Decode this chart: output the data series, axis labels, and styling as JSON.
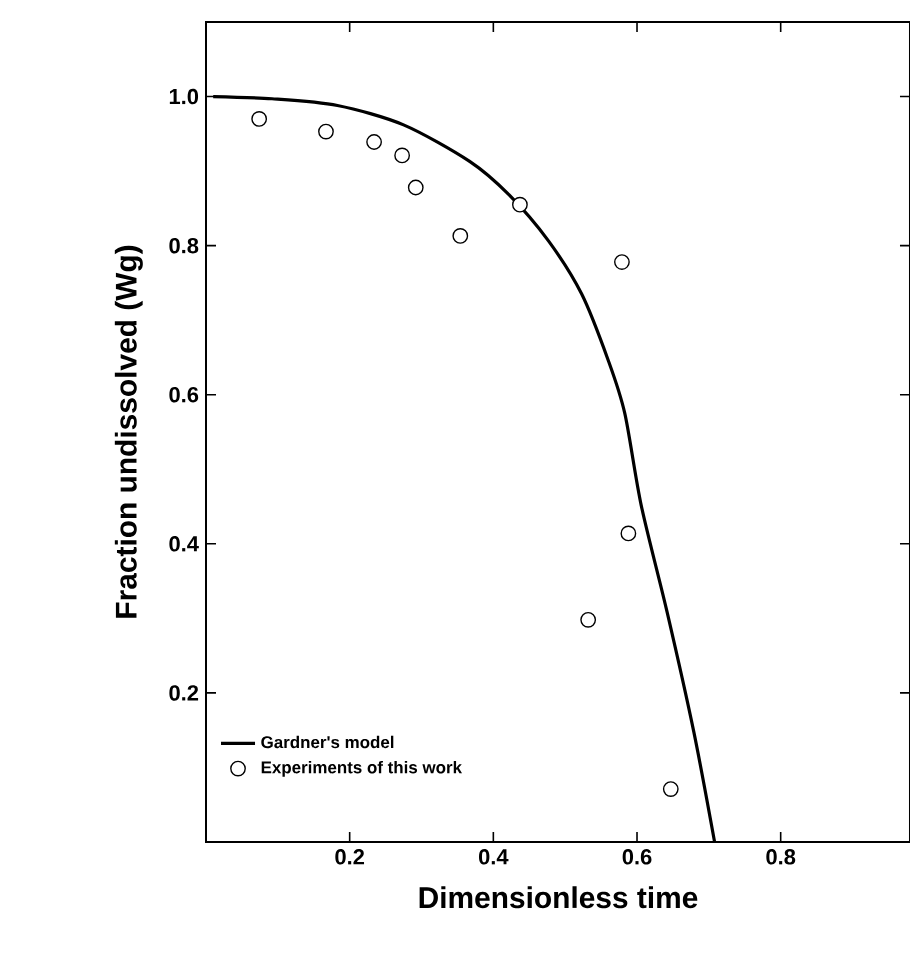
{
  "chart_data": {
    "type": "scatter",
    "xlabel": "Dimensionless time",
    "ylabel": "Fraction undissolved (Wg)",
    "xlim": [
      0,
      0.98
    ],
    "ylim": [
      0,
      1.1
    ],
    "xticks": [
      0.2,
      0.4,
      0.6,
      0.8
    ],
    "yticks": [
      0.2,
      0.4,
      0.6,
      0.8,
      {
        "value": 1.0,
        "label": "1.0"
      }
    ],
    "grid": false,
    "legend": "bottom left",
    "series": [
      {
        "name": "Gardner's model",
        "type": "line",
        "line_style": "solid",
        "marker": "none",
        "color": "#000000",
        "x": [
          0.01,
          0.092,
          0.183,
          0.275,
          0.367,
          0.422,
          0.477,
          0.523,
          0.56,
          0.583,
          0.606,
          0.642,
          0.679,
          0.708
        ],
        "values": [
          1.0,
          0.997,
          0.988,
          0.962,
          0.913,
          0.868,
          0.806,
          0.735,
          0.646,
          0.575,
          0.451,
          0.308,
          0.148,
          0.0
        ]
      },
      {
        "name": "Experiments of this work",
        "marker": "circle",
        "color": "#000000",
        "x": [
          0.074,
          0.167,
          0.234,
          0.273,
          0.292,
          0.354,
          0.437,
          0.579,
          0.588,
          0.532,
          0.647
        ],
        "values": [
          0.97,
          0.953,
          0.939,
          0.921,
          0.878,
          0.813,
          0.855,
          0.778,
          0.414,
          0.298,
          0.071
        ]
      }
    ]
  }
}
